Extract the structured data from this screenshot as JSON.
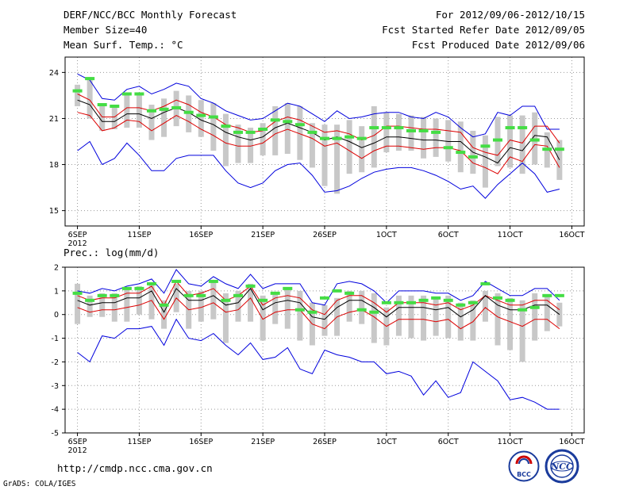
{
  "header": {
    "title": "DERF/NCC/BCC Monthly Forecast",
    "member_size": "Member Size=40",
    "variable": "Mean Surf. Temp.: °C",
    "period": "For 2012/09/06-2012/10/15",
    "start_date": "Fcst Started Refer Date 2012/09/05",
    "produced_date": "Fcst Produced Date 2012/09/06"
  },
  "footer": {
    "url": "http://cmdp.ncc.cma.gov.cn",
    "credit": "GrADS: COLA/IGES",
    "logo_bcc_text": "BCC",
    "logo_ncc_text": "NCC"
  },
  "colors": {
    "max_min": "#0000dd",
    "mean_band": "#dd0000",
    "median": "#000000",
    "box": "#c8c8c8",
    "marker": "#44dd44",
    "grid": "#999999"
  },
  "chart_data": [
    {
      "type": "line",
      "title": "Mean Surf. Temp.: °C",
      "x": [
        1,
        2,
        3,
        4,
        5,
        6,
        7,
        8,
        9,
        10,
        11,
        12,
        13,
        14,
        15,
        16,
        17,
        18,
        19,
        20,
        21,
        22,
        23,
        24,
        25,
        26,
        27,
        28,
        29,
        30,
        31,
        32,
        33,
        34,
        35,
        36,
        37,
        38,
        39,
        40
      ],
      "xticks": [
        1,
        6,
        11,
        16,
        21,
        26,
        31,
        36,
        41
      ],
      "xtick_labels": [
        "6SEP",
        "11SEP",
        "16SEP",
        "21SEP",
        "26SEP",
        "1OCT",
        "6OCT",
        "11OCT",
        "16OCT"
      ],
      "xtick_sublabel": "2012",
      "ylim": [
        14,
        25
      ],
      "yticks": [
        15,
        18,
        21,
        24
      ],
      "ytick_labels": [
        "15",
        "18",
        "21",
        "24"
      ],
      "series": [
        {
          "name": "max",
          "values": [
            23.9,
            23.5,
            22.3,
            22.2,
            22.9,
            23.1,
            22.6,
            22.9,
            23.3,
            23.1,
            22.3,
            22.0,
            21.5,
            21.2,
            20.9,
            21.0,
            21.5,
            22.0,
            21.8,
            21.3,
            20.8,
            21.5,
            21.0,
            21.1,
            21.3,
            21.4,
            21.4,
            21.1,
            21.0,
            21.4,
            21.1,
            20.4,
            19.8,
            20.0,
            21.4,
            21.2,
            21.8,
            21.8,
            20.3,
            20.3
          ]
        },
        {
          "name": "mean_plus_sd",
          "values": [
            22.6,
            22.2,
            21.1,
            21.1,
            21.7,
            21.7,
            21.5,
            21.8,
            22.2,
            21.9,
            21.4,
            21.1,
            20.6,
            20.4,
            20.1,
            20.2,
            20.8,
            21.1,
            20.9,
            20.5,
            20.1,
            20.2,
            20.0,
            19.6,
            19.9,
            20.5,
            20.5,
            20.4,
            20.3,
            20.3,
            20.2,
            20.1,
            19.1,
            18.8,
            18.6,
            19.6,
            19.4,
            20.5,
            20.5,
            19.4
          ]
        },
        {
          "name": "median",
          "values": [
            22.2,
            21.9,
            20.8,
            20.8,
            21.3,
            21.3,
            21.0,
            21.4,
            21.7,
            21.4,
            20.9,
            20.6,
            20.1,
            19.8,
            19.6,
            19.8,
            20.4,
            20.7,
            20.4,
            20.1,
            19.6,
            19.8,
            19.5,
            19.1,
            19.4,
            19.8,
            19.8,
            19.7,
            19.6,
            19.6,
            19.5,
            19.5,
            18.8,
            18.5,
            18.1,
            19.1,
            18.9,
            19.9,
            19.8,
            18.3
          ]
        },
        {
          "name": "mean_minus_sd",
          "values": [
            21.4,
            21.2,
            20.2,
            20.4,
            20.9,
            20.8,
            20.2,
            20.7,
            21.2,
            20.8,
            20.3,
            19.9,
            19.4,
            19.2,
            19.2,
            19.4,
            20.0,
            20.3,
            20.0,
            19.7,
            19.2,
            19.4,
            18.9,
            18.4,
            18.9,
            19.2,
            19.2,
            19.1,
            19.0,
            19.1,
            19.1,
            18.9,
            18.1,
            17.8,
            17.4,
            18.5,
            18.2,
            19.3,
            19.2,
            17.8
          ]
        },
        {
          "name": "min",
          "values": [
            18.9,
            19.5,
            18.0,
            18.4,
            19.4,
            18.6,
            17.6,
            17.6,
            18.4,
            18.6,
            18.6,
            18.6,
            17.6,
            16.8,
            16.5,
            16.8,
            17.6,
            18.0,
            18.1,
            17.3,
            16.2,
            16.3,
            16.6,
            17.1,
            17.5,
            17.7,
            17.8,
            17.8,
            17.6,
            17.3,
            16.9,
            16.4,
            16.6,
            15.8,
            16.7,
            17.4,
            18.1,
            17.4,
            16.2,
            16.4
          ]
        }
      ],
      "boxes": {
        "high": [
          23.2,
          23.7,
          22.0,
          21.8,
          22.5,
          22.6,
          21.9,
          22.3,
          22.8,
          22.5,
          22.2,
          22.0,
          21.3,
          20.6,
          20.4,
          20.7,
          21.8,
          22.0,
          21.8,
          20.7,
          20.6,
          20.6,
          20.9,
          20.5,
          21.8,
          21.4,
          21.3,
          21.2,
          21.1,
          21.0,
          20.9,
          20.8,
          20.2,
          19.9,
          21.1,
          21.2,
          21.2,
          21.4,
          20.1,
          19.6
        ],
        "low": [
          21.8,
          21.0,
          20.2,
          20.3,
          20.4,
          20.4,
          19.6,
          19.8,
          20.5,
          20.1,
          19.8,
          18.9,
          17.9,
          18.1,
          18.1,
          18.6,
          18.6,
          18.7,
          18.3,
          17.8,
          16.6,
          16.1,
          17.4,
          17.5,
          17.8,
          18.8,
          18.9,
          18.9,
          18.4,
          18.5,
          18.2,
          17.5,
          17.4,
          16.5,
          17.9,
          17.8,
          17.4,
          18.0,
          17.8,
          17.0
        ],
        "marker": [
          22.8,
          23.6,
          21.9,
          21.8,
          22.6,
          22.6,
          21.5,
          21.6,
          21.7,
          21.4,
          21.2,
          21.1,
          20.5,
          20.1,
          20.1,
          20.3,
          20.9,
          20.8,
          20.6,
          20.1,
          19.7,
          19.7,
          19.8,
          19.7,
          20.4,
          20.4,
          20.4,
          20.2,
          20.2,
          20.1,
          19.1,
          18.8,
          18.5,
          19.2,
          19.6,
          20.4,
          20.4,
          19.6,
          19.0,
          19.0
        ]
      }
    },
    {
      "type": "line",
      "title": "Prec.: log(mm/d)",
      "x": [
        1,
        2,
        3,
        4,
        5,
        6,
        7,
        8,
        9,
        10,
        11,
        12,
        13,
        14,
        15,
        16,
        17,
        18,
        19,
        20,
        21,
        22,
        23,
        24,
        25,
        26,
        27,
        28,
        29,
        30,
        31,
        32,
        33,
        34,
        35,
        36,
        37,
        38,
        39,
        40
      ],
      "xticks": [
        1,
        6,
        11,
        16,
        21,
        26,
        31,
        36,
        41
      ],
      "xtick_labels": [
        "6SEP",
        "11SEP",
        "16SEP",
        "21SEP",
        "26SEP",
        "1OCT",
        "6OCT",
        "11OCT",
        "16OCT"
      ],
      "xtick_sublabel": "2012",
      "ylim": [
        -5,
        2
      ],
      "yticks": [
        -5,
        -4,
        -3,
        -2,
        -1,
        0,
        1,
        2
      ],
      "ytick_labels": [
        "-5",
        "-4",
        "-3",
        "-2",
        "-1",
        "0",
        "1",
        "2"
      ],
      "series": [
        {
          "name": "max",
          "values": [
            1.0,
            0.9,
            1.1,
            1.0,
            1.2,
            1.3,
            1.5,
            0.9,
            1.9,
            1.3,
            1.2,
            1.6,
            1.3,
            1.1,
            1.7,
            1.1,
            1.3,
            1.3,
            1.3,
            0.5,
            0.4,
            1.3,
            1.4,
            1.3,
            1.0,
            0.5,
            1.0,
            1.0,
            1.0,
            0.9,
            0.9,
            0.6,
            0.8,
            1.4,
            1.1,
            0.8,
            0.8,
            1.1,
            1.1,
            0.6
          ]
        },
        {
          "name": "mean_plus_sd",
          "values": [
            0.8,
            0.6,
            0.7,
            0.7,
            0.9,
            0.9,
            1.2,
            0.4,
            1.4,
            0.8,
            0.9,
            1.1,
            0.6,
            0.8,
            1.2,
            0.4,
            0.7,
            0.8,
            0.7,
            0.2,
            0.0,
            0.6,
            0.8,
            0.8,
            0.5,
            0.1,
            0.5,
            0.5,
            0.5,
            0.4,
            0.5,
            0.2,
            0.4,
            0.8,
            0.6,
            0.4,
            0.4,
            0.6,
            0.6,
            0.2
          ]
        },
        {
          "name": "median",
          "values": [
            0.6,
            0.4,
            0.5,
            0.5,
            0.7,
            0.7,
            1.0,
            0.1,
            1.1,
            0.6,
            0.6,
            0.8,
            0.4,
            0.5,
            1.1,
            0.2,
            0.5,
            0.6,
            0.5,
            -0.1,
            -0.2,
            0.3,
            0.6,
            0.6,
            0.3,
            -0.1,
            0.3,
            0.3,
            0.3,
            0.2,
            0.3,
            -0.1,
            0.2,
            0.8,
            0.4,
            0.2,
            0.2,
            0.4,
            0.4,
            0.0
          ]
        },
        {
          "name": "mean_minus_sd",
          "values": [
            0.3,
            0.1,
            0.2,
            0.2,
            0.3,
            0.4,
            0.6,
            -0.2,
            0.7,
            0.2,
            0.3,
            0.5,
            0.1,
            0.2,
            0.7,
            -0.2,
            0.1,
            0.2,
            0.2,
            -0.4,
            -0.6,
            -0.1,
            0.1,
            0.2,
            -0.1,
            -0.5,
            -0.2,
            -0.2,
            -0.2,
            -0.3,
            -0.2,
            -0.6,
            -0.3,
            0.3,
            -0.1,
            -0.3,
            -0.5,
            -0.2,
            -0.2,
            -0.6
          ]
        },
        {
          "name": "min",
          "values": [
            -1.6,
            -2.0,
            -0.9,
            -1.0,
            -0.6,
            -0.6,
            -0.5,
            -1.3,
            -0.2,
            -1.0,
            -1.1,
            -0.8,
            -1.3,
            -1.7,
            -1.2,
            -1.9,
            -1.8,
            -1.4,
            -2.3,
            -2.5,
            -1.5,
            -1.7,
            -1.8,
            -2.0,
            -2.0,
            -2.5,
            -2.4,
            -2.6,
            -3.4,
            -2.8,
            -3.5,
            -3.3,
            -2.0,
            -2.4,
            -2.8,
            -3.6,
            -3.5,
            -3.7,
            -4.0,
            -4.0
          ]
        }
      ],
      "boxes": {
        "high": [
          1.3,
          0.8,
          0.9,
          0.9,
          1.1,
          1.2,
          1.3,
          0.6,
          1.3,
          1.0,
          1.0,
          1.4,
          0.9,
          1.0,
          1.3,
          0.8,
          0.9,
          1.1,
          1.0,
          0.5,
          0.4,
          0.7,
          1.0,
          1.0,
          0.9,
          0.3,
          0.8,
          0.8,
          0.8,
          0.7,
          0.8,
          0.5,
          0.6,
          1.0,
          0.9,
          0.7,
          0.6,
          0.9,
          0.8,
          0.5
        ],
        "low": [
          -0.4,
          -0.1,
          -0.1,
          -0.3,
          -0.3,
          0.0,
          -0.2,
          -0.6,
          0.1,
          -0.6,
          -0.3,
          -0.2,
          -1.2,
          -0.3,
          -0.3,
          -1.1,
          -0.4,
          -0.6,
          -1.1,
          -1.3,
          -0.9,
          -0.9,
          -0.3,
          -0.4,
          -1.2,
          -1.3,
          -0.9,
          -1.0,
          -1.1,
          -0.9,
          -1.0,
          -1.1,
          -1.1,
          -0.3,
          -1.3,
          -1.5,
          -2.0,
          -1.1,
          -0.7,
          -0.5
        ],
        "marker": [
          0.9,
          0.6,
          0.8,
          0.8,
          1.1,
          1.1,
          1.3,
          0.4,
          1.4,
          0.8,
          0.8,
          1.4,
          0.6,
          0.8,
          1.2,
          0.6,
          0.9,
          1.1,
          0.2,
          0.1,
          0.7,
          1.0,
          0.9,
          0.2,
          0.1,
          0.5,
          0.5,
          0.5,
          0.6,
          0.7,
          0.6,
          0.4,
          0.5,
          1.3,
          0.7,
          0.6,
          0.2,
          0.3,
          0.8,
          0.8
        ]
      }
    }
  ]
}
